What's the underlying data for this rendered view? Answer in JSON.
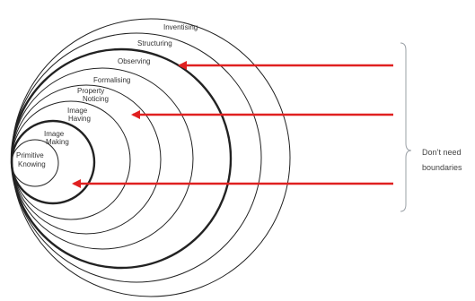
{
  "rings": [
    {
      "label": "Primitive Knowing",
      "bold": false
    },
    {
      "label": "Image Making",
      "bold": true
    },
    {
      "label": "Image Having",
      "bold": false
    },
    {
      "label": "Property Noticing",
      "bold": false
    },
    {
      "label": "Formalising",
      "bold": false
    },
    {
      "label": "Observing",
      "bold": true
    },
    {
      "label": "Structuring",
      "bold": false
    },
    {
      "label": "Inventising",
      "bold": false
    }
  ],
  "labels": {
    "primitive_1": "Primitive",
    "primitive_2": "Knowing",
    "image_making_1": "Image",
    "image_making_2": "Making",
    "image_having_1": "Image",
    "image_having_2": "Having",
    "property_noticing_1": "Property",
    "property_noticing_2": "Noticing",
    "formalising": "Formalising",
    "observing": "Observing",
    "structuring": "Structuring",
    "inventising": "Inventising"
  },
  "note": {
    "line1": "Don’t need",
    "line2": "boundaries"
  },
  "colors": {
    "arrow": "#e02020",
    "ring": "#222222",
    "bracket": "#9aa0a6"
  }
}
